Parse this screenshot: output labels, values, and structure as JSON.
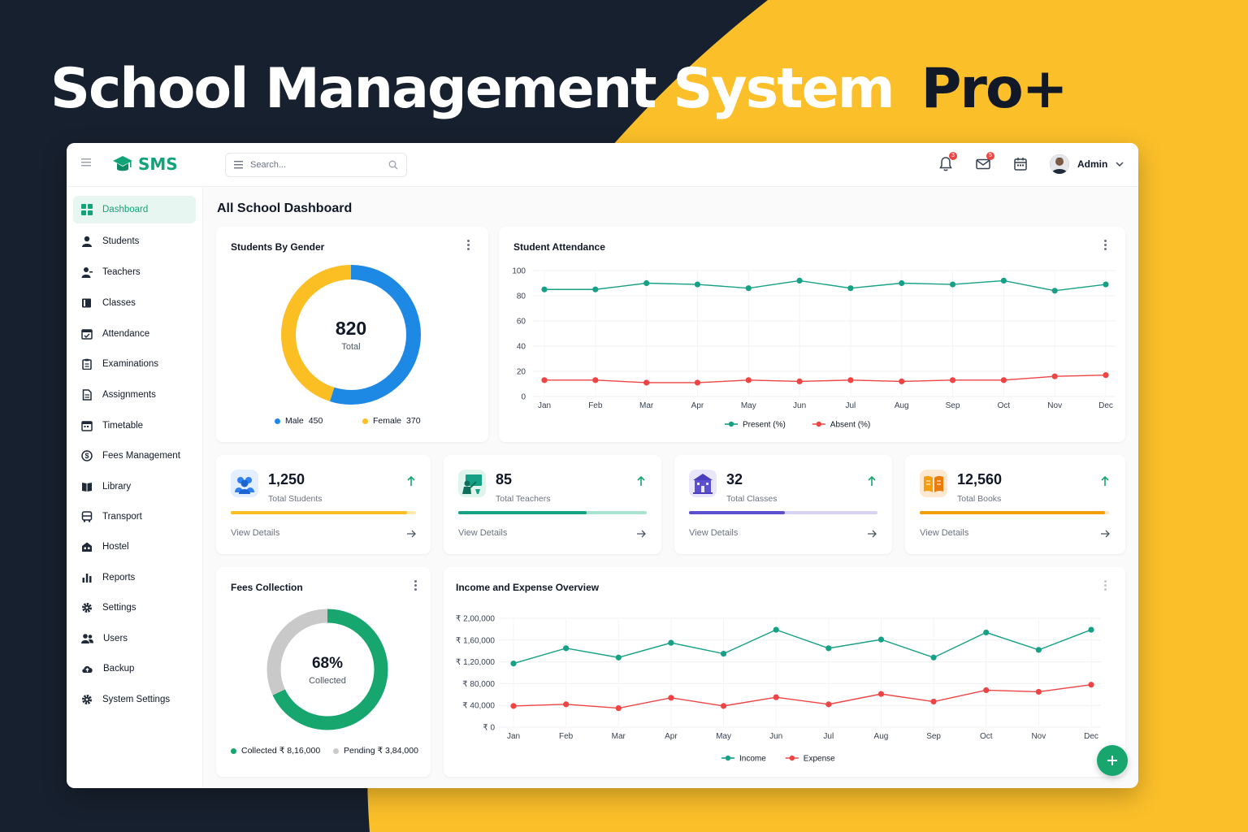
{
  "banner": {
    "title_main": "School Management System",
    "title_accent": "Pro+"
  },
  "colors": {
    "primary": "#12a37a",
    "accent_yellow": "#fbbf24",
    "navy": "#17202e",
    "male": "#1e88e5",
    "female": "#fbbf24",
    "present": "#16a085",
    "absent": "#ef4444",
    "income": "#16a085",
    "expense": "#ef4444"
  },
  "header": {
    "logo_text": "SMS",
    "search_placeholder": "Search...",
    "notifications_badge": "3",
    "messages_badge": "5",
    "user_name": "Admin"
  },
  "sidebar": {
    "items": [
      {
        "label": "Dashboard",
        "icon": "grid-icon",
        "active": true
      },
      {
        "label": "Students",
        "icon": "user-icon"
      },
      {
        "label": "Teachers",
        "icon": "teacher-icon"
      },
      {
        "label": "Classes",
        "icon": "book-icon"
      },
      {
        "label": "Attendance",
        "icon": "calendar-check-icon"
      },
      {
        "label": "Examinations",
        "icon": "clipboard-icon"
      },
      {
        "label": "Assignments",
        "icon": "document-icon"
      },
      {
        "label": "Timetable",
        "icon": "calendar-icon"
      },
      {
        "label": "Fees Management",
        "icon": "dollar-icon"
      },
      {
        "label": "Library",
        "icon": "library-icon"
      },
      {
        "label": "Transport",
        "icon": "bus-icon"
      },
      {
        "label": "Hostel",
        "icon": "building-icon"
      },
      {
        "label": "Reports",
        "icon": "bar-chart-icon"
      },
      {
        "label": "Settings",
        "icon": "gear-icon"
      },
      {
        "label": "Users",
        "icon": "users-icon"
      },
      {
        "label": "Backup",
        "icon": "cloud-upload-icon"
      },
      {
        "label": "System Settings",
        "icon": "gear-icon"
      }
    ]
  },
  "main": {
    "page_title": "All School Dashboard",
    "gender_card": {
      "title": "Students By Gender",
      "total": "820",
      "total_label": "Total",
      "male_label": "Male",
      "male_value": "450",
      "female_label": "Female",
      "female_value": "370"
    },
    "attendance_card": {
      "title": "Student Attendance"
    },
    "stats": [
      {
        "value": "1,250",
        "label": "Total Students",
        "link": "View Details",
        "progress": 0.95,
        "color": "#fbbf24",
        "track": "#fde9b0",
        "icon": "students-icon"
      },
      {
        "value": "85",
        "label": "Total Teachers",
        "link": "View Details",
        "progress": 0.68,
        "color": "#16a085",
        "track": "#a7e3cf",
        "icon": "teacher-board-icon"
      },
      {
        "value": "32",
        "label": "Total Classes",
        "link": "View Details",
        "progress": 0.51,
        "color": "#5b4fcf",
        "track": "#d6d3f3",
        "icon": "school-building-icon"
      },
      {
        "value": "12,560",
        "label": "Total Books",
        "link": "View Details",
        "progress": 0.98,
        "color": "#f59e0b",
        "track": "#fde7c2",
        "icon": "open-book-icon"
      }
    ],
    "fees_card": {
      "title": "Fees Collection",
      "percent": "68%",
      "percent_label": "Collected",
      "collected_label": "Collected ₹ 8,16,000",
      "pending_label": "Pending ₹ 3,84,000"
    },
    "income_card": {
      "title": "Income and Expense Overview"
    }
  },
  "chart_data": [
    {
      "type": "pie",
      "title": "Students By Gender",
      "categories": [
        "Male",
        "Female"
      ],
      "values": [
        450,
        370
      ]
    },
    {
      "type": "line",
      "title": "Student Attendance",
      "categories": [
        "Jan",
        "Feb",
        "Mar",
        "Apr",
        "May",
        "Jun",
        "Jul",
        "Aug",
        "Sep",
        "Oct",
        "Nov",
        "Dec"
      ],
      "ylim": [
        0,
        100
      ],
      "yticks": [
        "100",
        "80",
        "60",
        "40",
        "20",
        "0"
      ],
      "series": [
        {
          "name": "Present (%)",
          "values": [
            85,
            85,
            90,
            89,
            86,
            92,
            86,
            90,
            89,
            92,
            84,
            89
          ]
        },
        {
          "name": "Absent (%)",
          "values": [
            13,
            13,
            11,
            11,
            13,
            12,
            13,
            12,
            13,
            13,
            16,
            17
          ]
        }
      ],
      "legend": "bottom"
    },
    {
      "type": "pie",
      "title": "Fees Collection",
      "categories": [
        "Collected",
        "Pending"
      ],
      "values": [
        816000,
        384000
      ]
    },
    {
      "type": "line",
      "title": "Income and Expense Overview",
      "categories": [
        "Jan",
        "Feb",
        "Mar",
        "Apr",
        "May",
        "Jun",
        "Jul",
        "Aug",
        "Sep",
        "Oct",
        "Nov",
        "Dec"
      ],
      "ylim": [
        0,
        200000
      ],
      "yticks": [
        "₹ 2,00,000",
        "₹ 1,60,000",
        "₹ 1,20,000",
        "₹ 80,000",
        "₹ 40,000",
        "₹ 0"
      ],
      "series": [
        {
          "name": "Income",
          "values": [
            117000,
            145000,
            128000,
            155000,
            135000,
            179000,
            145000,
            161000,
            128000,
            174000,
            142000,
            179000
          ]
        },
        {
          "name": "Expense",
          "values": [
            39000,
            42000,
            35000,
            54000,
            39000,
            55000,
            42000,
            61000,
            47000,
            68000,
            65000,
            78000
          ]
        }
      ],
      "legend": "bottom"
    }
  ]
}
